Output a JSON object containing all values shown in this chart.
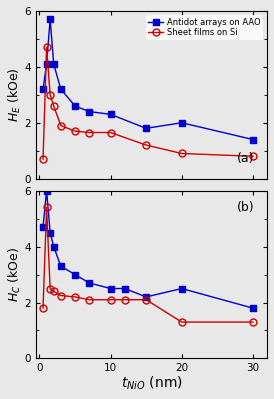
{
  "title_a": "(a)",
  "title_b": "(b)",
  "xlabel": "$t_{NiO}$ (nm)",
  "ylabel_a": "$H_E$ (kOe)",
  "ylabel_b": "$H_C$ (kOe)",
  "ylim_a": [
    0,
    6
  ],
  "ylim_b": [
    0,
    6
  ],
  "yticks": [
    0,
    2,
    4,
    6
  ],
  "xlim": [
    -0.5,
    32
  ],
  "xticks": [
    0,
    10,
    20,
    30
  ],
  "AAO_x_HE": [
    0.5,
    1.0,
    1.5,
    2.0,
    3.0,
    5.0,
    7.0,
    10.0,
    15.0,
    20.0,
    30.0
  ],
  "AAO_y_HE": [
    3.2,
    4.1,
    5.7,
    4.1,
    3.2,
    2.6,
    2.4,
    2.3,
    1.8,
    2.0,
    1.4
  ],
  "Si_x_HE": [
    0.5,
    1.0,
    1.5,
    2.0,
    3.0,
    5.0,
    7.0,
    10.0,
    15.0,
    20.0,
    30.0
  ],
  "Si_y_HE": [
    0.7,
    4.7,
    3.0,
    2.6,
    1.9,
    1.7,
    1.65,
    1.65,
    1.2,
    0.9,
    0.8
  ],
  "AAO_x_HC": [
    0.5,
    1.0,
    1.5,
    2.0,
    3.0,
    5.0,
    7.0,
    10.0,
    12.0,
    15.0,
    20.0,
    30.0
  ],
  "AAO_y_HC": [
    4.7,
    6.0,
    4.5,
    4.0,
    3.3,
    3.0,
    2.7,
    2.5,
    2.5,
    2.2,
    2.5,
    1.8
  ],
  "Si_x_HC": [
    0.5,
    1.0,
    1.5,
    2.0,
    3.0,
    5.0,
    7.0,
    10.0,
    12.0,
    15.0,
    20.0,
    30.0
  ],
  "Si_y_HC": [
    1.8,
    5.4,
    2.5,
    2.4,
    2.25,
    2.2,
    2.1,
    2.1,
    2.1,
    2.1,
    1.3,
    1.3
  ],
  "color_AAO": "#0000cc",
  "color_Si": "#cc0000",
  "marker_AAO": "s",
  "marker_Si": "o",
  "markersize_AAO": 5,
  "markersize_Si": 5,
  "linewidth": 1.0,
  "label_AAO": "Antidot arrays on AAO",
  "label_Si": "Sheet films on Si",
  "bg_color": "#e8e8e8",
  "fig_bg": "#e8e8e8"
}
